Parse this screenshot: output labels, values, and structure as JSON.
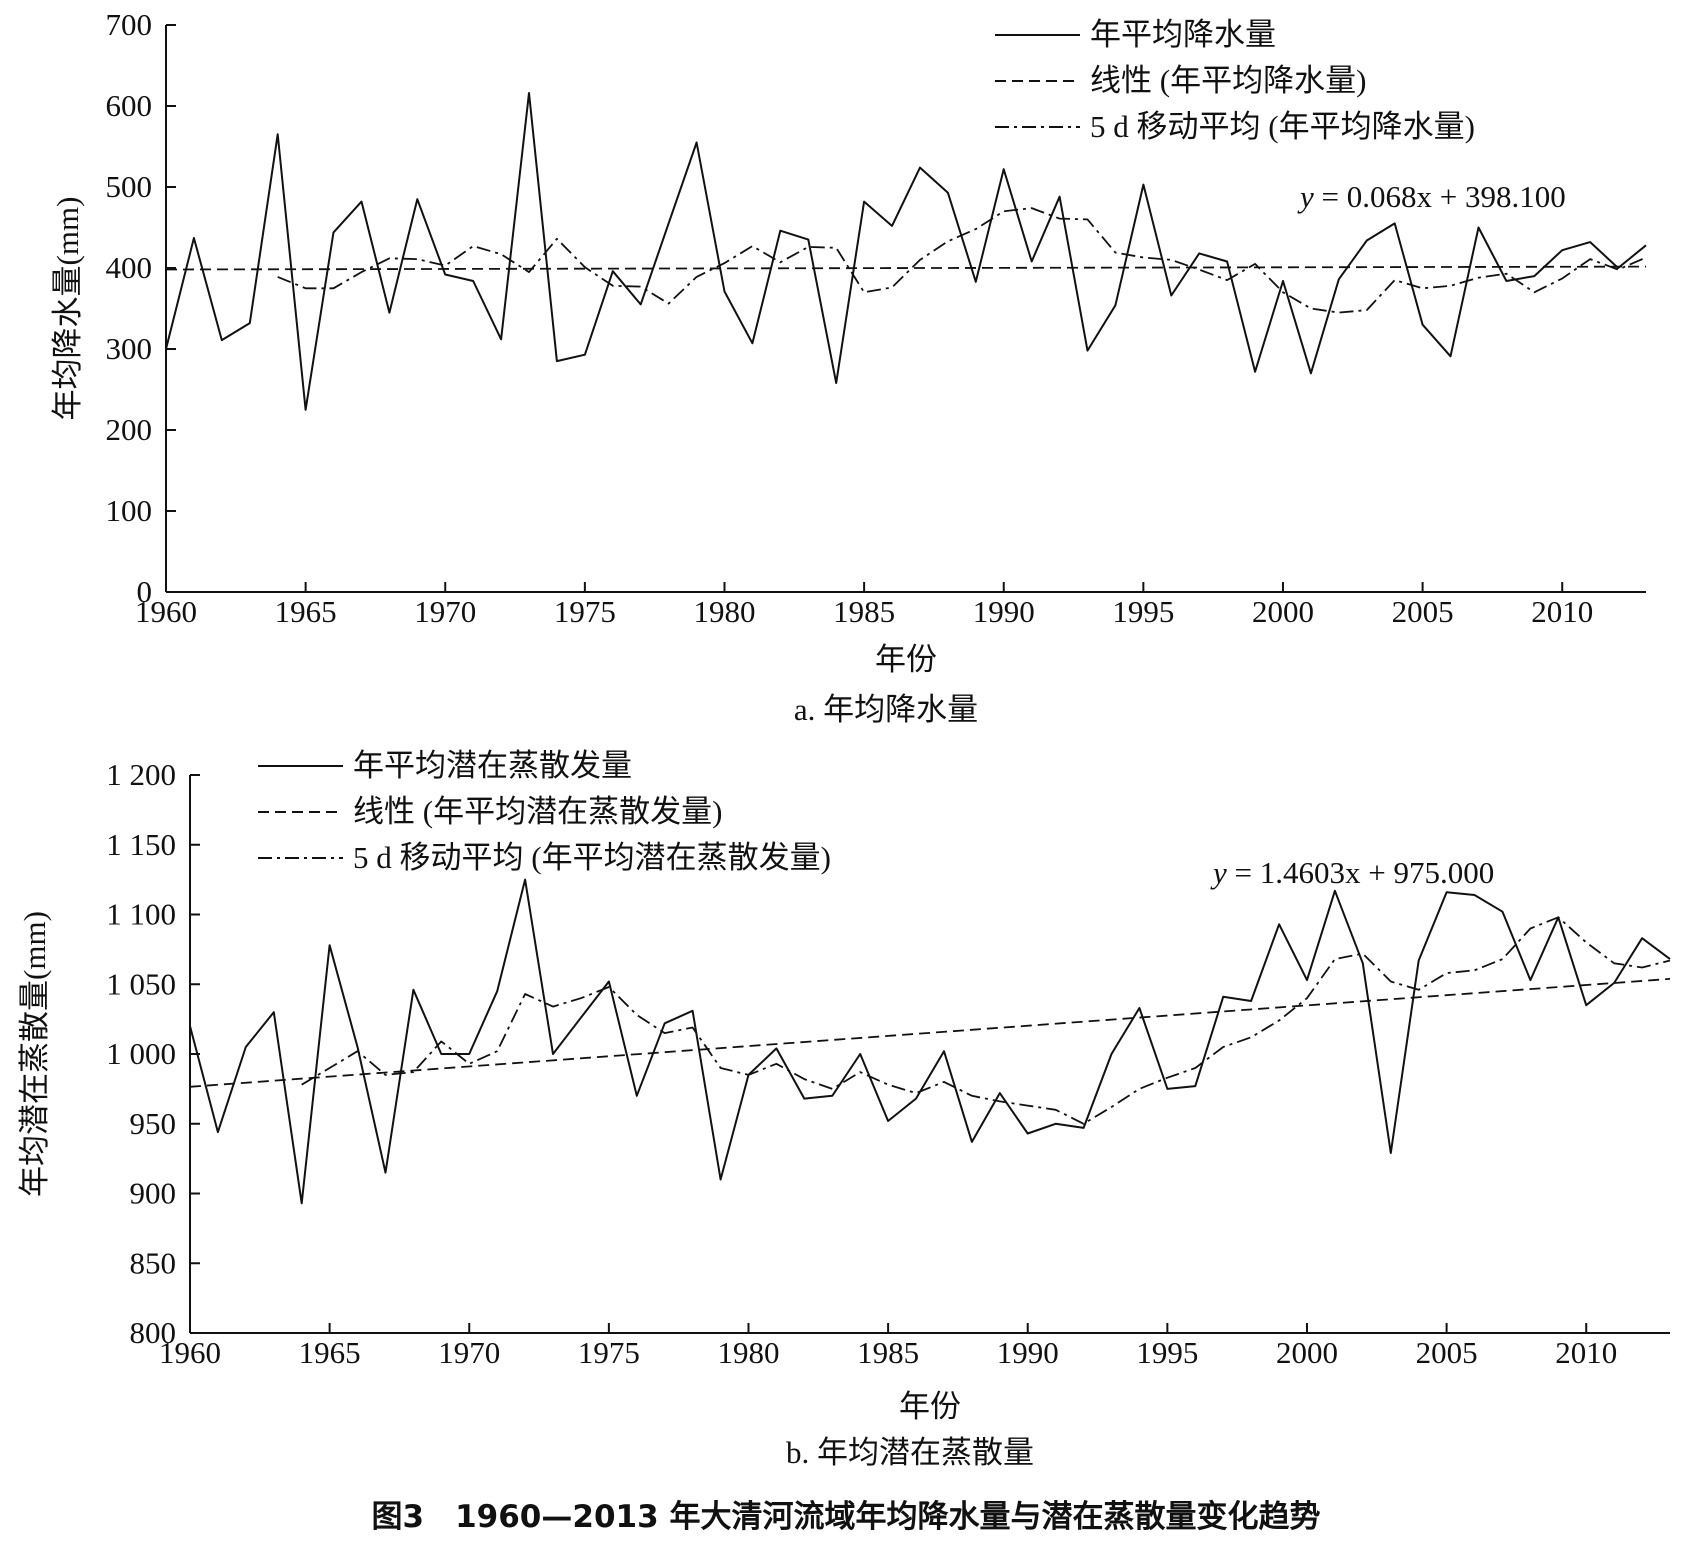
{
  "chart_data": [
    {
      "type": "line",
      "panel_label": "a. 年均降水量",
      "xlabel": "年份",
      "ylabel": "年均降水量(mm)",
      "xlim": [
        1960,
        2013
      ],
      "ylim": [
        0,
        700
      ],
      "x_ticks": [
        1960,
        1965,
        1970,
        1975,
        1980,
        1985,
        1990,
        1995,
        2000,
        2005,
        2010
      ],
      "y_ticks": [
        0,
        100,
        200,
        300,
        400,
        500,
        600,
        700
      ],
      "y_tick_labels": [
        "0",
        "100",
        "200",
        "300",
        "400",
        "500",
        "600",
        "700"
      ],
      "equation": "0.068x + 398.100",
      "legend_position": "top-right",
      "trend": {
        "slope": 0.068,
        "intercept": 398.1,
        "x_start": 1960
      },
      "x": [
        1960,
        1961,
        1962,
        1963,
        1964,
        1965,
        1966,
        1967,
        1968,
        1969,
        1970,
        1971,
        1972,
        1973,
        1974,
        1975,
        1976,
        1977,
        1978,
        1979,
        1980,
        1981,
        1982,
        1983,
        1984,
        1985,
        1986,
        1987,
        1988,
        1989,
        1990,
        1991,
        1992,
        1993,
        1994,
        1995,
        1996,
        1997,
        1998,
        1999,
        2000,
        2001,
        2002,
        2003,
        2004,
        2005,
        2006,
        2007,
        2008,
        2009,
        2010,
        2011,
        2012,
        2013
      ],
      "series": [
        {
          "name": "年平均降水量",
          "style": "solid",
          "values": [
            300,
            437,
            311,
            332,
            565,
            225,
            444,
            482,
            345,
            485,
            392,
            384,
            312,
            616,
            285,
            293,
            396,
            355,
            455,
            555,
            371,
            307,
            446,
            435,
            258,
            482,
            452,
            524,
            493,
            383,
            522,
            408,
            488,
            298,
            354,
            503,
            366,
            418,
            408,
            272,
            384,
            270,
            386,
            434,
            455,
            330,
            291,
            450,
            384,
            390,
            422,
            432,
            400,
            428
          ]
        },
        {
          "name": "线性 (年平均降水量)",
          "style": "dashed",
          "line_kind": "trend"
        },
        {
          "name": "5 d 移动平均 (年平均降水量)",
          "style": "dashdot",
          "values": [
            null,
            null,
            null,
            null,
            389,
            375,
            375,
            395,
            412,
            411,
            403,
            427,
            417,
            395,
            436,
            401,
            378,
            377,
            356,
            389,
            406,
            427,
            407,
            426,
            425,
            370,
            376,
            410,
            433,
            448,
            470,
            474,
            461,
            460,
            419,
            413,
            410,
            398,
            385,
            405,
            370,
            350,
            345,
            348,
            385,
            375,
            378,
            388,
            393,
            370,
            387,
            411,
            398,
            413
          ]
        }
      ]
    },
    {
      "type": "line",
      "panel_label": "b. 年均潜在蒸散量",
      "xlabel": "年份",
      "ylabel": "年均潜在蒸散量(mm)",
      "xlim": [
        1960,
        2013
      ],
      "ylim": [
        800,
        1200
      ],
      "x_ticks": [
        1960,
        1965,
        1970,
        1975,
        1980,
        1985,
        1990,
        1995,
        2000,
        2005,
        2010
      ],
      "y_ticks": [
        800,
        850,
        900,
        950,
        1000,
        1050,
        1100,
        1150,
        1200
      ],
      "y_tick_labels": [
        "800",
        "850",
        "900",
        "950",
        "1 000",
        "1 050",
        "1 100",
        "1 150",
        "1 200"
      ],
      "equation": "1.4603x + 975.000",
      "legend_position": "top-left",
      "trend": {
        "slope": 1.4603,
        "intercept": 975.0,
        "x_start": 1960
      },
      "x": [
        1960,
        1961,
        1962,
        1963,
        1964,
        1965,
        1966,
        1967,
        1968,
        1969,
        1970,
        1971,
        1972,
        1973,
        1974,
        1975,
        1976,
        1977,
        1978,
        1979,
        1980,
        1981,
        1982,
        1983,
        1984,
        1985,
        1986,
        1987,
        1988,
        1989,
        1990,
        1991,
        1992,
        1993,
        1994,
        1995,
        1996,
        1997,
        1998,
        1999,
        2000,
        2001,
        2002,
        2003,
        2004,
        2005,
        2006,
        2007,
        2008,
        2009,
        2010,
        2011,
        2012,
        2013
      ],
      "series": [
        {
          "name": "年平均潜在蒸散发量",
          "style": "solid",
          "values": [
            1020,
            944,
            1005,
            1030,
            893,
            1078,
            1005,
            915,
            1046,
            1000,
            1000,
            1045,
            1125,
            1000,
            1026,
            1052,
            970,
            1022,
            1031,
            910,
            985,
            1004,
            968,
            970,
            1000,
            952,
            968,
            1002,
            937,
            972,
            943,
            950,
            947,
            1000,
            1033,
            975,
            977,
            1041,
            1038,
            1093,
            1053,
            1117,
            1065,
            929,
            1067,
            1116,
            1114,
            1102,
            1053,
            1098,
            1035,
            1051,
            1083,
            1068
          ]
        },
        {
          "name": "线性 (年平均潜在蒸散发量)",
          "style": "dashed",
          "line_kind": "trend"
        },
        {
          "name": "5 d 移动平均 (年平均潜在蒸散发量)",
          "style": "dashdot",
          "values": [
            null,
            null,
            null,
            null,
            978,
            990,
            1002,
            985,
            987,
            1009,
            993,
            1002,
            1043,
            1034,
            1040,
            1048,
            1028,
            1015,
            1019,
            990,
            985,
            993,
            982,
            975,
            987,
            978,
            972,
            980,
            970,
            966,
            963,
            960,
            950,
            962,
            975,
            983,
            990,
            1005,
            1012,
            1024,
            1040,
            1068,
            1072,
            1052,
            1046,
            1058,
            1060,
            1068,
            1090,
            1098,
            1080,
            1065,
            1062,
            1067
          ]
        }
      ]
    }
  ],
  "figure_caption": "图3　1960—2013 年大清河流域年均降水量与潜在蒸散量变化趋势"
}
